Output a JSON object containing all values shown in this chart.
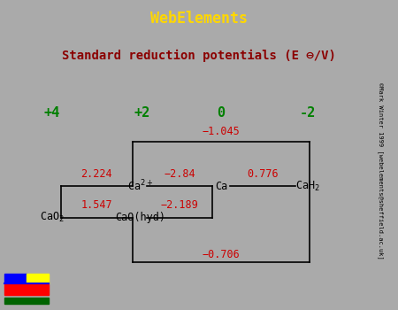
{
  "title_bar": "WebElements",
  "title_bar_bg": "#8B0000",
  "title_bar_color": "#FFD700",
  "subtitle": "Standard reduction potentials (E ⊖/V)",
  "subtitle_color": "#8B0000",
  "subtitle_bg": "#FFFFF0",
  "main_bg": "#FFFFFF",
  "border_color": "#AAAAAA",
  "oxidation_states": [
    "+4",
    "+2",
    "0",
    "-2"
  ],
  "os_color": "#008000",
  "line_color": "#000000",
  "pot_color": "#CC0000",
  "copyright": "©Mark Winter 1999 [webelements@sheffield.ac.uk]"
}
